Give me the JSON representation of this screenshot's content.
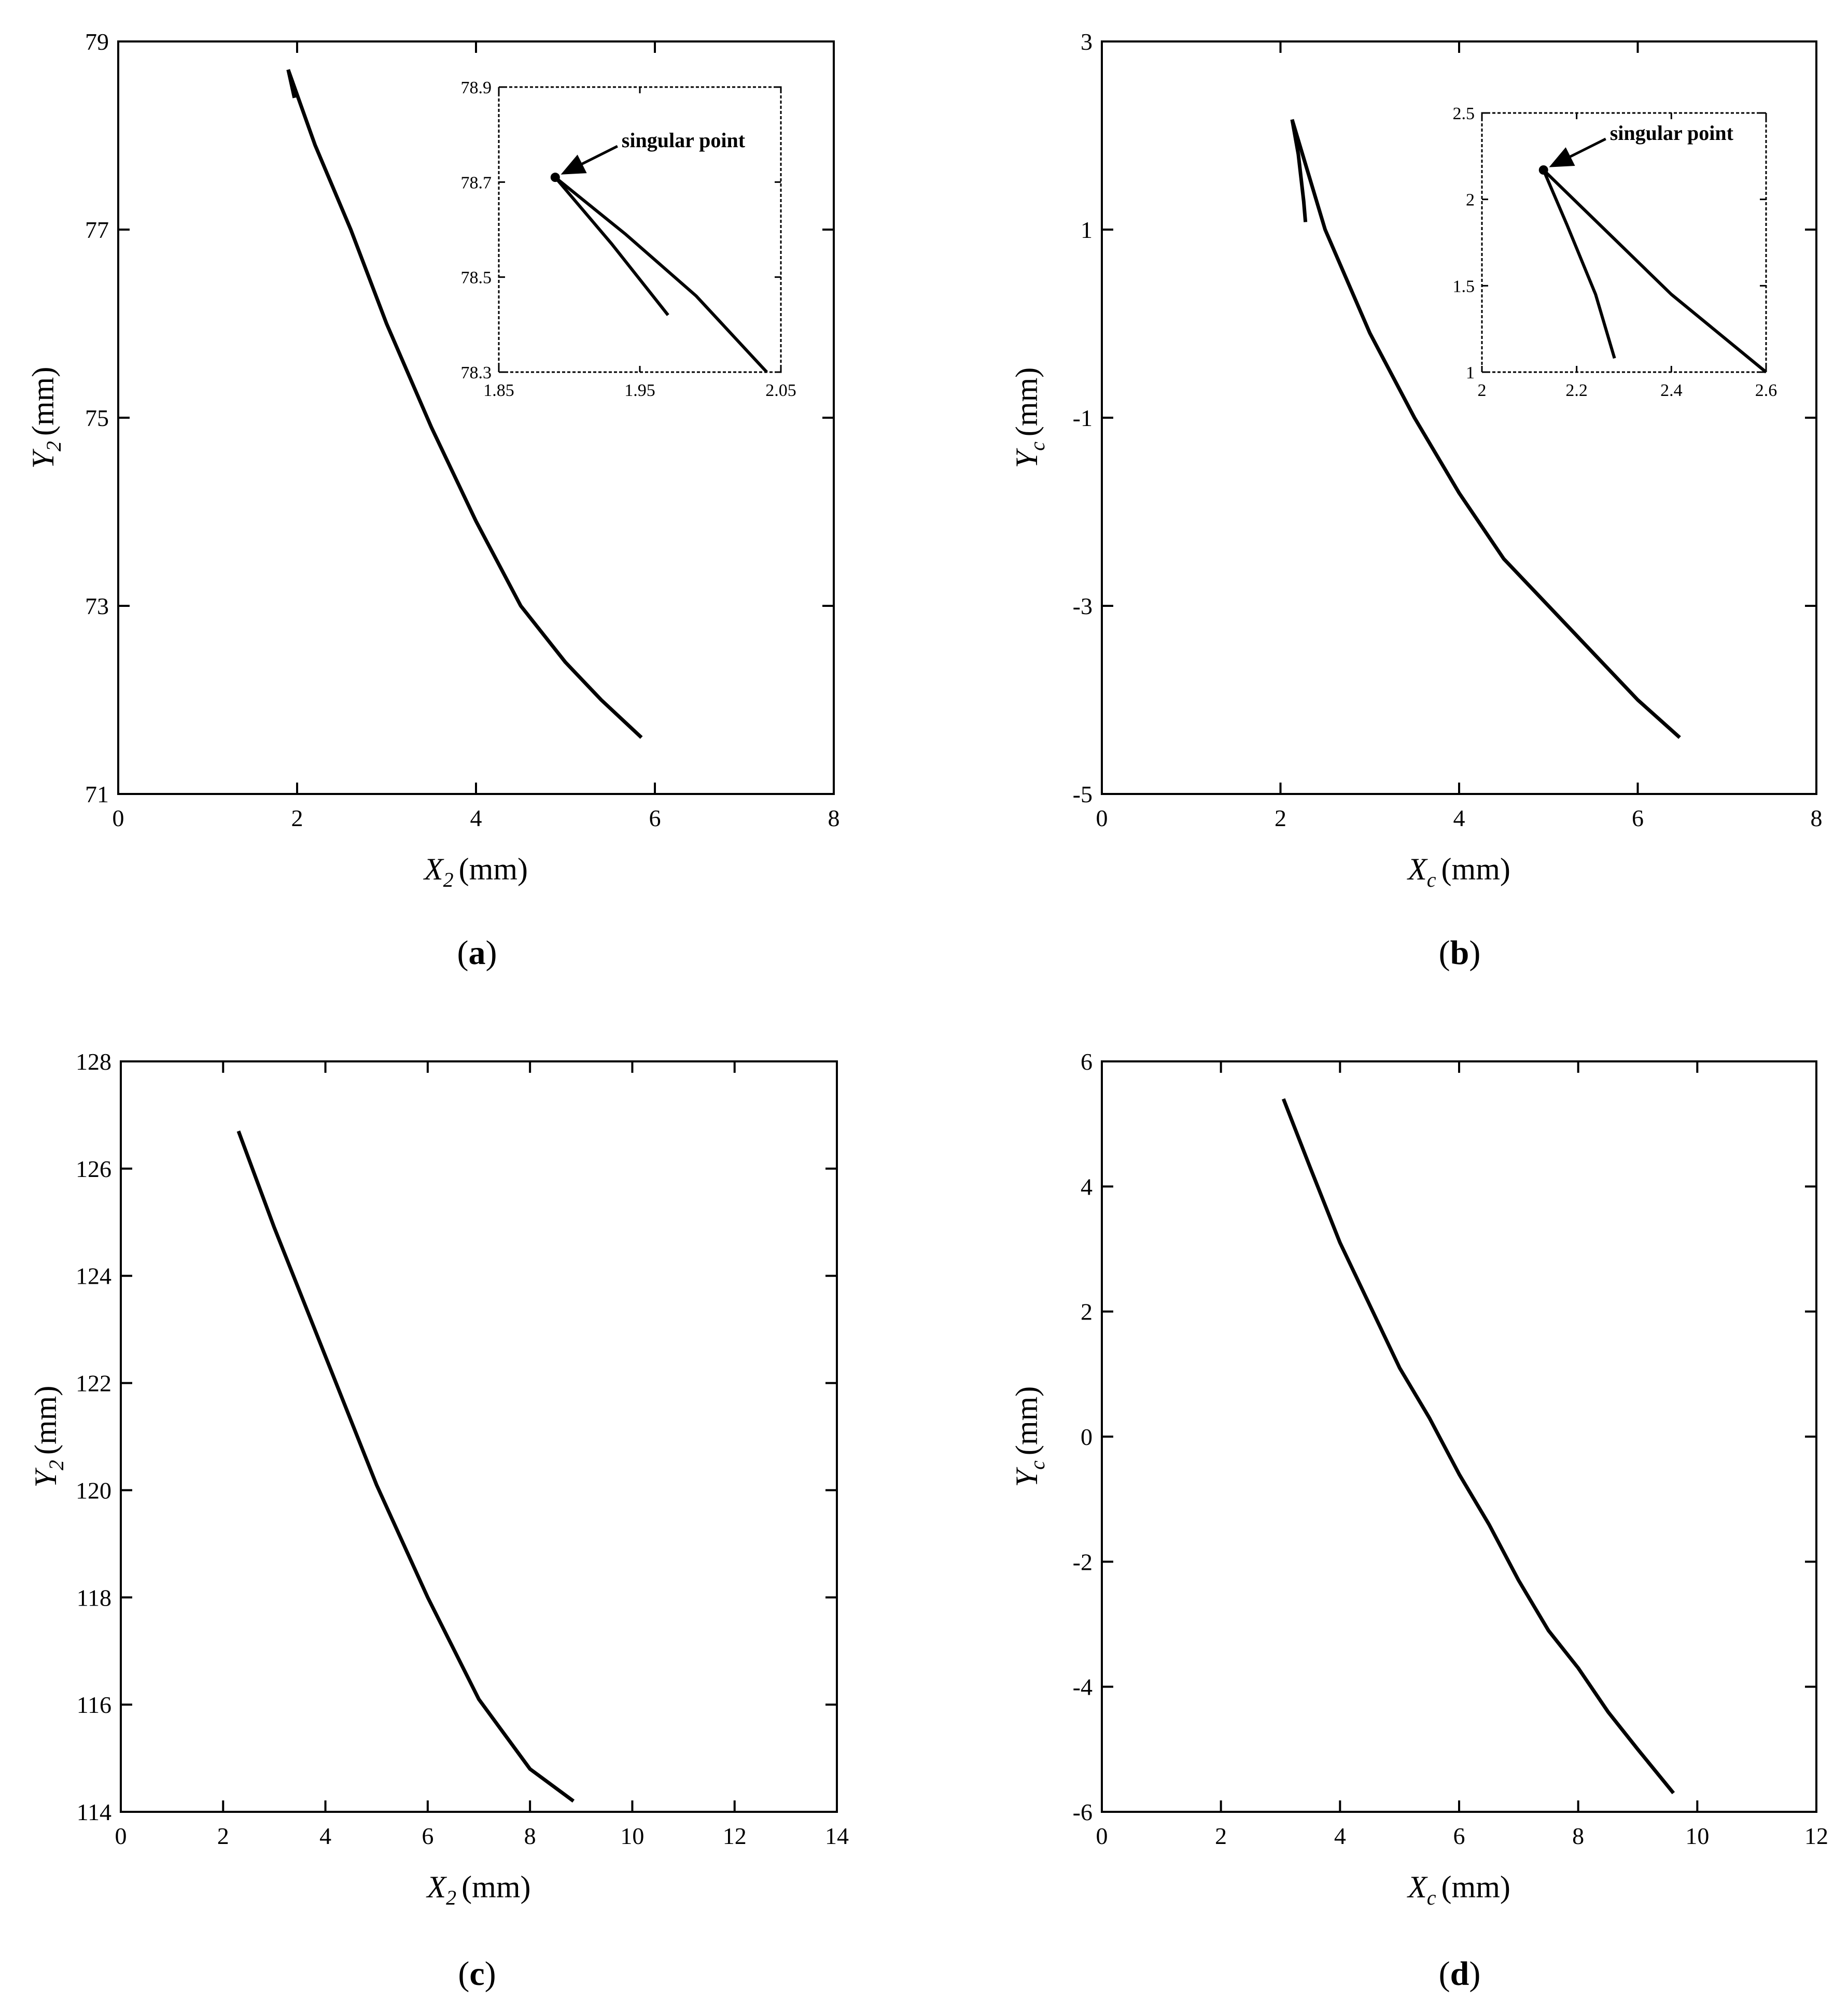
{
  "chart_data": [
    {
      "panel": "(a)",
      "panel_letter": "a",
      "type": "line",
      "xlabel": "X2 (mm)",
      "xlabel_main": "X",
      "xlabel_sub": "2",
      "ylabel": "Y2 (mm)",
      "ylabel_main": "Y",
      "ylabel_sub": "2",
      "unit": "(mm)",
      "xlim": [
        0,
        8
      ],
      "ylim": [
        71,
        79
      ],
      "xticks": [
        "0",
        "2",
        "4",
        "6",
        "8"
      ],
      "yticks": [
        "71",
        "73",
        "75",
        "77",
        "79"
      ],
      "series": [
        {
          "x": [
            1.9,
            2.2,
            2.6,
            3.0,
            3.5,
            4.0,
            4.5,
            5.0,
            5.4,
            5.85
          ],
          "y": [
            78.7,
            77.9,
            77.0,
            76.0,
            74.9,
            73.9,
            73.0,
            72.4,
            72.0,
            71.6
          ]
        },
        {
          "x": [
            1.9,
            1.97
          ],
          "y": [
            78.7,
            78.4
          ]
        }
      ],
      "inset": {
        "xlim": [
          1.85,
          2.05
        ],
        "ylim": [
          78.3,
          78.9
        ],
        "xticks": [
          "1.85",
          "1.95",
          "2.05"
        ],
        "yticks": [
          "78.3",
          "78.5",
          "78.7",
          "78.9"
        ],
        "series": [
          {
            "x": [
              1.89,
              1.94,
              1.99,
              2.04
            ],
            "y": [
              78.71,
              78.59,
              78.46,
              78.3
            ]
          },
          {
            "x": [
              1.89,
              1.93,
              1.97
            ],
            "y": [
              78.71,
              78.57,
              78.42
            ]
          }
        ],
        "singular_point": {
          "x": 1.89,
          "y": 78.71
        },
        "annotation": "singular point"
      }
    },
    {
      "panel": "(b)",
      "panel_letter": "b",
      "type": "line",
      "xlabel": "Xc (mm)",
      "xlabel_main": "X",
      "xlabel_sub": "c",
      "ylabel": "Yc (mm)",
      "ylabel_main": "Y",
      "ylabel_sub": "c",
      "unit": "(mm)",
      "xlim": [
        0,
        8
      ],
      "ylim": [
        -5,
        3
      ],
      "xticks": [
        "0",
        "2",
        "4",
        "6",
        "8"
      ],
      "yticks": [
        "-5",
        "-3",
        "-1",
        "1",
        "3"
      ],
      "series": [
        {
          "x": [
            2.13,
            2.5,
            3.0,
            3.5,
            4.0,
            4.5,
            5.0,
            5.5,
            6.0,
            6.47
          ],
          "y": [
            2.17,
            1.0,
            -0.1,
            -1.0,
            -1.8,
            -2.5,
            -3.0,
            -3.5,
            -4.0,
            -4.4
          ]
        },
        {
          "x": [
            2.13,
            2.2,
            2.26,
            2.28
          ],
          "y": [
            2.17,
            1.8,
            1.3,
            1.08
          ]
        }
      ],
      "inset": {
        "xlim": [
          2,
          2.6
        ],
        "ylim": [
          1,
          2.5
        ],
        "xticks": [
          "2",
          "2.2",
          "2.4",
          "2.6"
        ],
        "yticks": [
          "1",
          "1.5",
          "2",
          "2.5"
        ],
        "series": [
          {
            "x": [
              2.13,
              2.25,
              2.4,
              2.6
            ],
            "y": [
              2.17,
              1.85,
              1.45,
              1.0
            ]
          },
          {
            "x": [
              2.13,
              2.18,
              2.24,
              2.28
            ],
            "y": [
              2.17,
              1.85,
              1.45,
              1.08
            ]
          }
        ],
        "singular_point": {
          "x": 2.13,
          "y": 2.17
        },
        "annotation": "singular point"
      }
    },
    {
      "panel": "(c)",
      "panel_letter": "c",
      "type": "line",
      "xlabel": "X2 (mm)",
      "xlabel_main": "X",
      "xlabel_sub": "2",
      "ylabel": "Y2 (mm)",
      "ylabel_main": "Y",
      "ylabel_sub": "2",
      "unit": "(mm)",
      "xlim": [
        0,
        14
      ],
      "ylim": [
        114,
        128
      ],
      "xticks": [
        "0",
        "2",
        "4",
        "6",
        "8",
        "10",
        "12",
        "14"
      ],
      "yticks": [
        "114",
        "116",
        "118",
        "120",
        "122",
        "124",
        "126",
        "128"
      ],
      "series": [
        {
          "x": [
            2.3,
            3.0,
            4.0,
            5.0,
            6.0,
            7.0,
            8.0,
            8.85
          ],
          "y": [
            126.7,
            124.9,
            122.5,
            120.1,
            118.0,
            116.1,
            114.8,
            114.2
          ]
        }
      ]
    },
    {
      "panel": "(d)",
      "panel_letter": "d",
      "type": "line",
      "xlabel": "Xc (mm)",
      "xlabel_main": "X",
      "xlabel_sub": "c",
      "ylabel": "Yc (mm)",
      "ylabel_main": "Y",
      "ylabel_sub": "c",
      "unit": "(mm)",
      "xlim": [
        0,
        12
      ],
      "ylim": [
        -6,
        6
      ],
      "xticks": [
        "0",
        "2",
        "4",
        "6",
        "8",
        "10",
        "12"
      ],
      "yticks": [
        "-6",
        "-4",
        "-2",
        "0",
        "2",
        "4",
        "6"
      ],
      "series": [
        {
          "x": [
            3.05,
            3.5,
            4.0,
            4.5,
            5.0,
            5.5,
            6.0,
            6.5,
            7.0,
            7.5,
            8.0,
            8.5,
            9.0,
            9.6
          ],
          "y": [
            5.4,
            4.3,
            3.1,
            2.1,
            1.1,
            0.3,
            -0.6,
            -1.4,
            -2.3,
            -3.1,
            -3.7,
            -4.4,
            -5.0,
            -5.7
          ]
        }
      ]
    }
  ]
}
